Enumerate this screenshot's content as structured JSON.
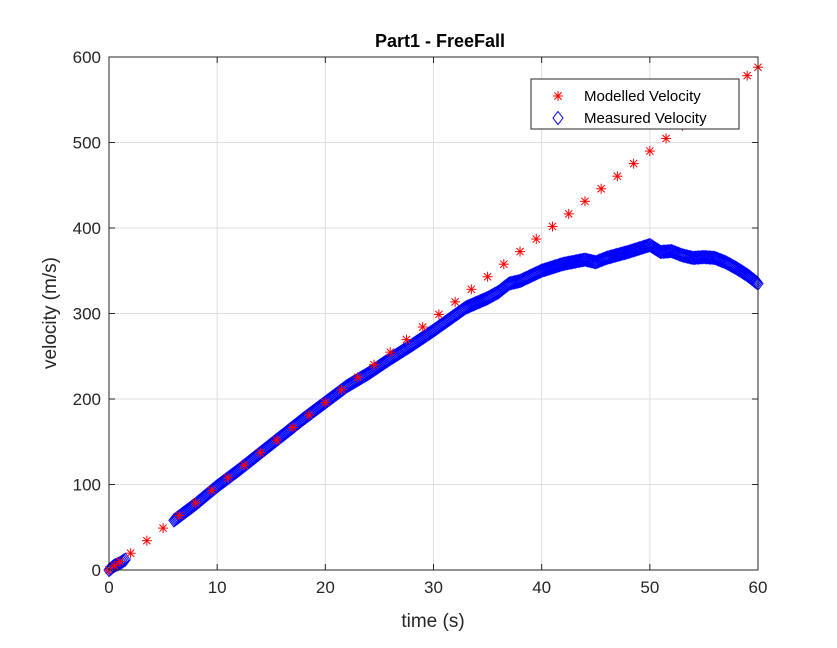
{
  "colors": {
    "modelled": "#ff0000",
    "measured": "#0000ff",
    "axis": "#262626",
    "grid": "#dfdfdf"
  },
  "chart_data": {
    "type": "scatter",
    "title": "Part1 - FreeFall",
    "xlabel": "time (s)",
    "ylabel": "velocity (m/s)",
    "xlim": [
      0,
      60
    ],
    "ylim": [
      0,
      600
    ],
    "xticks": [
      "0",
      "10",
      "20",
      "30",
      "40",
      "50",
      "60"
    ],
    "yticks": [
      "0",
      "100",
      "200",
      "300",
      "400",
      "500",
      "600"
    ],
    "grid": true,
    "legend_position": "top-right",
    "series": [
      {
        "name": "Modelled Velocity",
        "marker": "asterisk",
        "color": "#ff0000",
        "x": [
          0,
          0.5,
          1,
          2,
          3.5,
          5,
          6.5,
          8,
          9.5,
          11,
          12.5,
          14,
          15.5,
          17,
          18.5,
          20,
          21.5,
          23,
          24.5,
          26,
          27.5,
          29,
          30.5,
          32,
          33.5,
          35,
          36.5,
          38,
          39.5,
          41,
          42.5,
          44,
          45.5,
          47,
          48.5,
          50,
          51.5,
          53,
          54.5,
          56,
          57.5,
          59,
          60
        ],
        "y": [
          0,
          4.9,
          9.8,
          19.6,
          34.3,
          49,
          63.7,
          78.4,
          93.1,
          107.8,
          122.5,
          137.2,
          151.9,
          166.6,
          181.3,
          196,
          210.7,
          225.4,
          240.1,
          254.8,
          269.5,
          284.2,
          298.9,
          313.6,
          328.3,
          343,
          357.7,
          372.4,
          387.1,
          401.8,
          416.5,
          431.2,
          445.9,
          460.6,
          475.3,
          490,
          504.7,
          519.4,
          534.1,
          548.8,
          563.5,
          578.2,
          588
        ]
      },
      {
        "name": "Measured Velocity",
        "marker": "diamond",
        "color": "#0000ff",
        "x": [
          0,
          0.5,
          1,
          1.5,
          6,
          8,
          10,
          12,
          14,
          16,
          18,
          20,
          22,
          24,
          26,
          28,
          30,
          32,
          33,
          35,
          36,
          37,
          38,
          40,
          42,
          44,
          45,
          46,
          48,
          50,
          51,
          52,
          53,
          54,
          55,
          56,
          57,
          58,
          59,
          60
        ],
        "y": [
          0,
          5,
          8,
          12,
          58,
          77,
          98,
          117,
          137,
          157,
          177,
          196,
          215,
          230,
          247,
          263,
          280,
          298,
          307,
          318,
          325,
          335,
          338,
          350,
          358,
          363,
          360,
          365,
          372,
          380,
          372,
          373,
          368,
          365,
          366,
          365,
          360,
          353,
          345,
          335
        ]
      }
    ]
  }
}
